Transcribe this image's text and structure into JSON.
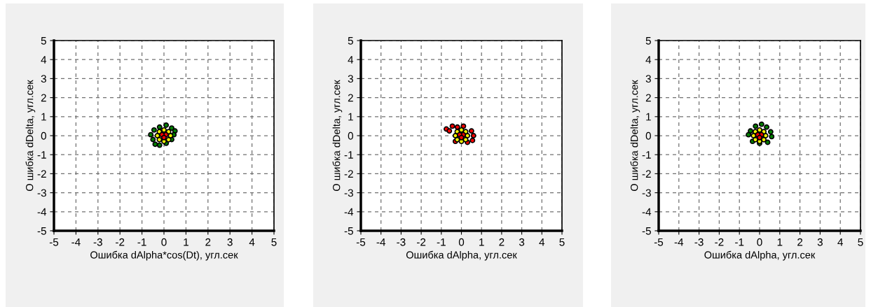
{
  "chart_data": [
    {
      "type": "scatter",
      "xlabel": "Ошибка dAlpha*cos(Dt), угл.сек",
      "ylabel": "О шибка dDelta, угл.сек",
      "xlim": [
        -5,
        5
      ],
      "ylim": [
        -5,
        5
      ],
      "xticks": [
        -5,
        -4,
        -3,
        -2,
        -1,
        0,
        1,
        2,
        3,
        4,
        5
      ],
      "yticks": [
        -5,
        -4,
        -3,
        -2,
        -1,
        0,
        1,
        2,
        3,
        4,
        5
      ],
      "grid": true,
      "marker": "circle",
      "series": [
        {
          "color": "#008000",
          "x": [
            -0.6,
            -0.5,
            -0.4,
            -0.2,
            0.1,
            0.35,
            0.5,
            0.35,
            0.1,
            -0.2,
            -0.45,
            0.45
          ],
          "values": [
            0.05,
            -0.2,
            -0.45,
            -0.5,
            -0.4,
            -0.2,
            0.25,
            0.4,
            0.55,
            0.45,
            0.3,
            0.05
          ]
        },
        {
          "color": "#ffff00",
          "x": [
            0.3,
            0.21,
            0,
            -0.21,
            -0.3,
            -0.21,
            0,
            0.21
          ],
          "values": [
            0,
            0.21,
            0.3,
            0.21,
            0,
            -0.21,
            -0.3,
            -0.21
          ]
        },
        {
          "color": "#ff0000",
          "x": [
            0.09,
            -0.09,
            0
          ],
          "values": [
            0.05,
            0.05,
            -0.1
          ]
        }
      ]
    },
    {
      "type": "scatter",
      "xlabel": "Ошибка dAlpha, угл.сек",
      "ylabel": "О шибка dDelta, угл.сек",
      "xlim": [
        -5,
        5
      ],
      "ylim": [
        -5,
        5
      ],
      "xticks": [
        -5,
        -4,
        -3,
        -2,
        -1,
        0,
        1,
        2,
        3,
        4,
        5
      ],
      "yticks": [
        -5,
        -4,
        -3,
        -2,
        -1,
        0,
        1,
        2,
        3,
        4,
        5
      ],
      "grid": true,
      "marker": "circle",
      "series": [
        {
          "color": "#ff0000",
          "x": [
            -0.75,
            -0.6,
            -0.45,
            0.5,
            0.6,
            0.55,
            0.3,
            -0.3,
            0.1,
            -0.2
          ],
          "values": [
            0.35,
            0.25,
            0.5,
            0.25,
            0,
            -0.25,
            -0.35,
            -0.3,
            0.5,
            0.45
          ]
        },
        {
          "color": "#ffff00",
          "x": [
            0.3,
            0.21,
            0,
            -0.21,
            -0.3,
            -0.21,
            0,
            0.21
          ],
          "values": [
            0,
            0.21,
            0.3,
            0.21,
            0,
            -0.21,
            -0.3,
            -0.21
          ]
        },
        {
          "color": "#ff0000",
          "x": [
            0.09,
            -0.09,
            0
          ],
          "values": [
            0.05,
            0.05,
            -0.1
          ]
        }
      ]
    },
    {
      "type": "scatter",
      "xlabel": "Ошибка dAlpha, угл.сек",
      "ylabel": "О шибка dDelta, угл.сек",
      "xlim": [
        -5,
        5
      ],
      "ylim": [
        -5,
        5
      ],
      "xticks": [
        -5,
        -4,
        -3,
        -2,
        -1,
        0,
        1,
        2,
        3,
        4,
        5
      ],
      "yticks": [
        -5,
        -4,
        -3,
        -2,
        -1,
        0,
        1,
        2,
        3,
        4,
        5
      ],
      "grid": true,
      "marker": "circle",
      "series": [
        {
          "color": "#008000",
          "x": [
            0.1,
            -0.2,
            0.35,
            0.55,
            0.6,
            0.4,
            -0.45,
            -0.55,
            -0.35,
            0.0
          ],
          "values": [
            0.6,
            0.5,
            0.45,
            0.2,
            -0.05,
            -0.35,
            0.25,
            0.05,
            -0.3,
            -0.4
          ]
        },
        {
          "color": "#ffff00",
          "x": [
            0.3,
            0.21,
            0,
            -0.21,
            -0.3,
            -0.21,
            0,
            0.21
          ],
          "values": [
            0,
            0.21,
            0.3,
            0.21,
            0,
            -0.21,
            -0.3,
            -0.21
          ]
        },
        {
          "color": "#ff0000",
          "x": [
            0.09,
            -0.09,
            0
          ],
          "values": [
            0.05,
            0.05,
            -0.1
          ]
        }
      ]
    }
  ]
}
